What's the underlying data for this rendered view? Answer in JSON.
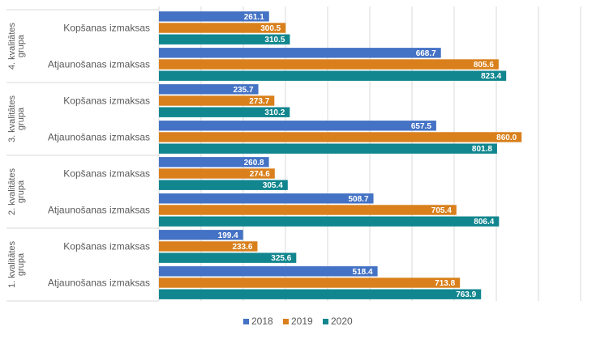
{
  "chart_data": {
    "type": "bar",
    "orientation": "horizontal",
    "legend_position": "bottom",
    "grid": true,
    "xlim": [
      0,
      1000
    ],
    "series": [
      {
        "name": "2018",
        "color": "#4472C4"
      },
      {
        "name": "2019",
        "color": "#D9801C"
      },
      {
        "name": "2020",
        "color": "#11868E"
      }
    ],
    "groups": [
      {
        "label": "4. kvalitātes grupa",
        "label_lines": [
          "4. kvalitātes",
          "grupa"
        ],
        "categories": [
          {
            "label": "Kopšanas izmaksas",
            "values": [
              261.1,
              300.5,
              310.5
            ],
            "labels": [
              "261.1",
              "300.5",
              "310.5"
            ]
          },
          {
            "label": "Atjaunošanas izmaksas",
            "values": [
              668.7,
              805.6,
              823.4
            ],
            "labels": [
              "668.7",
              "805.6",
              "823.4"
            ]
          }
        ]
      },
      {
        "label": "3. kvalitātes grupa",
        "label_lines": [
          "3. kvalitātes",
          "grupa"
        ],
        "categories": [
          {
            "label": "Kopšanas izmaksas",
            "values": [
              235.7,
              273.7,
              310.2
            ],
            "labels": [
              "235.7",
              "273.7",
              "310.2"
            ]
          },
          {
            "label": "Atjaunošanas izmaksas",
            "values": [
              657.5,
              860.0,
              801.8
            ],
            "labels": [
              "657.5",
              "860.0",
              "801.8"
            ]
          }
        ]
      },
      {
        "label": "2. kvalitātes grupa",
        "label_lines": [
          "2. kvalitātes",
          "grupa"
        ],
        "categories": [
          {
            "label": "Kopšanas izmaksas",
            "values": [
              260.8,
              274.6,
              305.4
            ],
            "labels": [
              "260.8",
              "274.6",
              "305.4"
            ]
          },
          {
            "label": "Atjaunošanas izmaksas",
            "values": [
              508.7,
              705.4,
              806.4
            ],
            "labels": [
              "508.7",
              "705.4",
              "806.4"
            ]
          }
        ]
      },
      {
        "label": "1. kvalitātes grupa",
        "label_lines": [
          "1. kvalitātes",
          "grupa"
        ],
        "categories": [
          {
            "label": "Kopšanas izmaksas",
            "values": [
              199.4,
              233.6,
              325.6
            ],
            "labels": [
              "199.4",
              "233.6",
              "325.6"
            ]
          },
          {
            "label": "Atjaunošanas izmaksas",
            "values": [
              518.4,
              713.8,
              763.9
            ],
            "labels": [
              "518.4",
              "713.8",
              "763.9"
            ]
          }
        ]
      }
    ]
  }
}
